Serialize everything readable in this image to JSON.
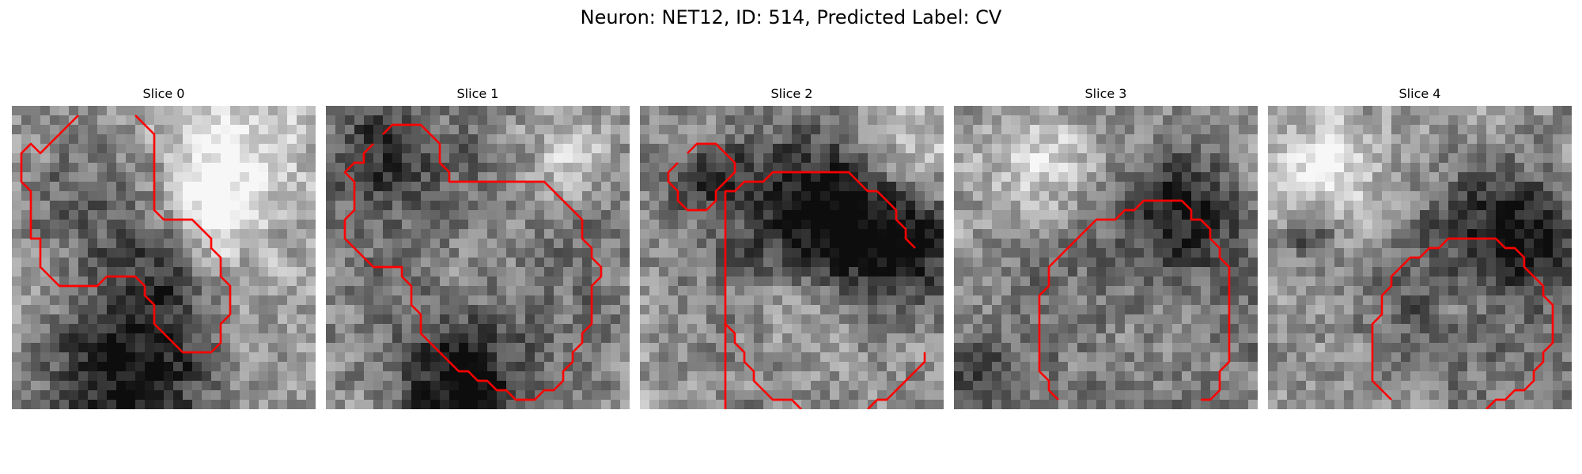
{
  "figure": {
    "title": "Neuron: NET12, ID: 514, Predicted Label: CV"
  },
  "panels": [
    {
      "title": "Slice 0",
      "seed": 11,
      "blobs": [
        {
          "cx": 12,
          "cy": 28,
          "r": 6,
          "d": -0.6
        },
        {
          "cx": 7,
          "cy": 9,
          "r": 5,
          "d": -0.25
        },
        {
          "cx": 14,
          "cy": 17,
          "r": 4,
          "d": -0.3
        },
        {
          "cx": 23,
          "cy": 4,
          "r": 5,
          "d": 0.35
        },
        {
          "cx": 21,
          "cy": 11,
          "r": 3,
          "d": 0.3
        }
      ],
      "contours": [
        [
          [
            7,
            1
          ],
          [
            4,
            4
          ],
          [
            3,
            5
          ],
          [
            2,
            4
          ],
          [
            1,
            5
          ],
          [
            1,
            8
          ],
          [
            2,
            9
          ],
          [
            2,
            14
          ],
          [
            3,
            14
          ],
          [
            3,
            17
          ],
          [
            5,
            19
          ],
          [
            9,
            19
          ],
          [
            10,
            18
          ],
          [
            13,
            18
          ],
          [
            14,
            19
          ],
          [
            14,
            20
          ],
          [
            15,
            21
          ],
          [
            15,
            23
          ],
          [
            18,
            26
          ],
          [
            21,
            26
          ],
          [
            22,
            25
          ],
          [
            22,
            23
          ],
          [
            23,
            22
          ],
          [
            23,
            19
          ],
          [
            22,
            18
          ],
          [
            22,
            16
          ],
          [
            21,
            15
          ],
          [
            21,
            14
          ],
          [
            19,
            12
          ],
          [
            16,
            12
          ],
          [
            15,
            11
          ],
          [
            15,
            3
          ],
          [
            13,
            1
          ]
        ]
      ]
    },
    {
      "title": "Slice 1",
      "seed": 23,
      "blobs": [
        {
          "cx": 16,
          "cy": 16,
          "r": 11,
          "d": -0.45
        },
        {
          "cx": 16,
          "cy": 16,
          "r": 7,
          "d": 0.35
        },
        {
          "cx": 14,
          "cy": 29,
          "r": 4,
          "d": -0.5
        },
        {
          "cx": 5,
          "cy": 4,
          "r": 4,
          "d": -0.3
        },
        {
          "cx": 25,
          "cy": 5,
          "r": 4,
          "d": 0.3
        }
      ],
      "contours": [
        [
          [
            6,
            3
          ],
          [
            7,
            2
          ],
          [
            10,
            2
          ],
          [
            11,
            3
          ],
          [
            12,
            4
          ],
          [
            12,
            6
          ],
          [
            13,
            7
          ],
          [
            13,
            8
          ],
          [
            15,
            8
          ],
          [
            23,
            8
          ],
          [
            24,
            9
          ],
          [
            25,
            10
          ],
          [
            26,
            11
          ],
          [
            27,
            12
          ],
          [
            27,
            14
          ],
          [
            28,
            15
          ],
          [
            28,
            16
          ],
          [
            29,
            17
          ],
          [
            29,
            18
          ],
          [
            28,
            19
          ],
          [
            28,
            23
          ],
          [
            27,
            24
          ],
          [
            27,
            25
          ],
          [
            26,
            26
          ],
          [
            26,
            27
          ],
          [
            25,
            28
          ],
          [
            25,
            29
          ],
          [
            24,
            30
          ],
          [
            23,
            30
          ],
          [
            22,
            31
          ],
          [
            20,
            31
          ],
          [
            19,
            30
          ],
          [
            18,
            30
          ],
          [
            17,
            29
          ],
          [
            16,
            29
          ],
          [
            15,
            28
          ],
          [
            14,
            28
          ],
          [
            13,
            27
          ],
          [
            12,
            26
          ],
          [
            11,
            25
          ],
          [
            10,
            24
          ],
          [
            10,
            22
          ],
          [
            9,
            21
          ],
          [
            9,
            19
          ],
          [
            8,
            18
          ],
          [
            8,
            17
          ],
          [
            5,
            17
          ],
          [
            4,
            16
          ],
          [
            3,
            15
          ],
          [
            2,
            14
          ],
          [
            2,
            12
          ],
          [
            3,
            11
          ],
          [
            3,
            8
          ],
          [
            2,
            7
          ],
          [
            3,
            6
          ],
          [
            4,
            6
          ],
          [
            4,
            5
          ],
          [
            5,
            4
          ]
        ]
      ]
    },
    {
      "title": "Slice 2",
      "seed": 37,
      "blobs": [
        {
          "cx": 20,
          "cy": 10,
          "r": 6,
          "d": -0.55
        },
        {
          "cx": 16,
          "cy": 18,
          "r": 10,
          "d": -0.25
        },
        {
          "cx": 17,
          "cy": 21,
          "r": 5,
          "d": 0.3
        },
        {
          "cx": 6,
          "cy": 7,
          "r": 3,
          "d": -0.3
        },
        {
          "cx": 28,
          "cy": 14,
          "r": 4,
          "d": -0.35
        },
        {
          "cx": 27,
          "cy": 4,
          "r": 4,
          "d": 0.35
        }
      ],
      "contours": [
        [
          [
            5,
            5
          ],
          [
            6,
            4
          ],
          [
            8,
            4
          ],
          [
            9,
            5
          ],
          [
            10,
            6
          ],
          [
            10,
            7
          ],
          [
            9,
            8
          ],
          [
            8,
            9
          ],
          [
            8,
            10
          ],
          [
            7,
            11
          ],
          [
            5,
            11
          ],
          [
            4,
            10
          ],
          [
            4,
            9
          ],
          [
            3,
            8
          ],
          [
            3,
            7
          ],
          [
            4,
            6
          ]
        ],
        [
          [
            9,
            32
          ],
          [
            9,
            9
          ],
          [
            10,
            9
          ],
          [
            11,
            8
          ],
          [
            13,
            8
          ],
          [
            14,
            7
          ],
          [
            22,
            7
          ],
          [
            23,
            8
          ],
          [
            24,
            9
          ],
          [
            25,
            9
          ],
          [
            26,
            10
          ],
          [
            27,
            11
          ],
          [
            27,
            12
          ],
          [
            28,
            13
          ],
          [
            28,
            14
          ],
          [
            29,
            15
          ]
        ],
        [
          [
            9,
            23
          ],
          [
            10,
            24
          ],
          [
            10,
            25
          ],
          [
            11,
            26
          ],
          [
            11,
            27
          ],
          [
            12,
            28
          ],
          [
            12,
            29
          ],
          [
            13,
            30
          ],
          [
            14,
            31
          ],
          [
            16,
            31
          ],
          [
            17,
            32
          ]
        ],
        [
          [
            24,
            32
          ],
          [
            25,
            31
          ],
          [
            26,
            31
          ],
          [
            27,
            30
          ],
          [
            28,
            29
          ],
          [
            29,
            28
          ],
          [
            30,
            27
          ],
          [
            30,
            26
          ]
        ]
      ]
    },
    {
      "title": "Slice 3",
      "seed": 53,
      "blobs": [
        {
          "cx": 20,
          "cy": 20,
          "r": 10,
          "d": -0.4
        },
        {
          "cx": 20,
          "cy": 21,
          "r": 6,
          "d": 0.3
        },
        {
          "cx": 24,
          "cy": 11,
          "r": 4,
          "d": -0.35
        },
        {
          "cx": 9,
          "cy": 6,
          "r": 4,
          "d": 0.3
        },
        {
          "cx": 2,
          "cy": 28,
          "r": 3,
          "d": -0.3
        }
      ],
      "contours": [
        [
          [
            11,
            31
          ],
          [
            10,
            30
          ],
          [
            10,
            29
          ],
          [
            9,
            28
          ],
          [
            9,
            20
          ],
          [
            10,
            19
          ],
          [
            10,
            17
          ],
          [
            11,
            16
          ],
          [
            12,
            15
          ],
          [
            13,
            14
          ],
          [
            14,
            13
          ],
          [
            15,
            12
          ],
          [
            17,
            12
          ],
          [
            18,
            11
          ],
          [
            19,
            11
          ],
          [
            20,
            10
          ],
          [
            24,
            10
          ],
          [
            25,
            11
          ],
          [
            25,
            12
          ],
          [
            26,
            12
          ],
          [
            27,
            13
          ],
          [
            27,
            14
          ],
          [
            28,
            15
          ],
          [
            28,
            16
          ],
          [
            29,
            17
          ],
          [
            29,
            27
          ],
          [
            28,
            28
          ],
          [
            28,
            30
          ],
          [
            27,
            31
          ],
          [
            26,
            31
          ]
        ]
      ]
    },
    {
      "title": "Slice 4",
      "seed": 71,
      "blobs": [
        {
          "cx": 22,
          "cy": 20,
          "r": 9,
          "d": -0.4
        },
        {
          "cx": 22,
          "cy": 21,
          "r": 5,
          "d": 0.25
        },
        {
          "cx": 25,
          "cy": 13,
          "r": 4,
          "d": -0.4
        },
        {
          "cx": 6,
          "cy": 7,
          "r": 4,
          "d": 0.35
        },
        {
          "cx": 4,
          "cy": 13,
          "r": 2,
          "d": -0.35
        }
      ],
      "contours": [
        [
          [
            13,
            31
          ],
          [
            11,
            29
          ],
          [
            11,
            23
          ],
          [
            12,
            22
          ],
          [
            12,
            20
          ],
          [
            13,
            19
          ],
          [
            13,
            18
          ],
          [
            14,
            17
          ],
          [
            15,
            16
          ],
          [
            16,
            16
          ],
          [
            17,
            15
          ],
          [
            18,
            15
          ],
          [
            19,
            14
          ],
          [
            24,
            14
          ],
          [
            25,
            15
          ],
          [
            26,
            15
          ],
          [
            27,
            16
          ],
          [
            27,
            17
          ],
          [
            28,
            18
          ],
          [
            29,
            19
          ],
          [
            29,
            20
          ],
          [
            30,
            21
          ],
          [
            30,
            25
          ],
          [
            29,
            26
          ],
          [
            29,
            27
          ],
          [
            28,
            28
          ],
          [
            28,
            29
          ],
          [
            27,
            30
          ],
          [
            26,
            30
          ],
          [
            25,
            31
          ],
          [
            24,
            31
          ],
          [
            23,
            32
          ]
        ]
      ]
    }
  ],
  "colors": {
    "contour": "#ff0000"
  }
}
